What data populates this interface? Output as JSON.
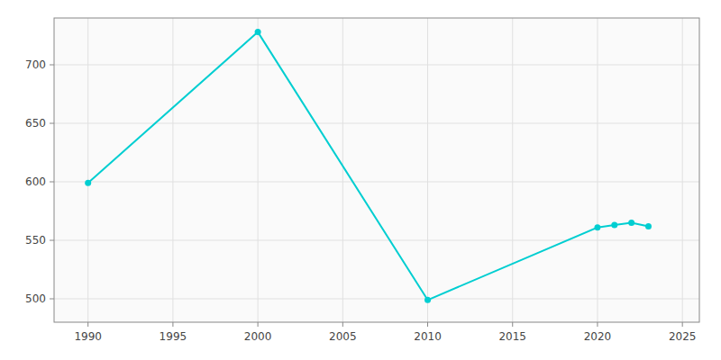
{
  "chart_data": {
    "type": "line",
    "x": [
      1990,
      2000,
      2010,
      2020,
      2021,
      2022,
      2023
    ],
    "values": [
      599,
      728,
      499,
      561,
      563,
      565,
      562
    ],
    "color": "#00CED1",
    "marker": "circle",
    "xlim": [
      1988,
      2026
    ],
    "ylim": [
      480,
      740
    ],
    "xticks": [
      1990,
      1995,
      2000,
      2005,
      2010,
      2015,
      2020,
      2025
    ],
    "yticks": [
      500,
      550,
      600,
      650,
      700
    ],
    "grid": true
  }
}
